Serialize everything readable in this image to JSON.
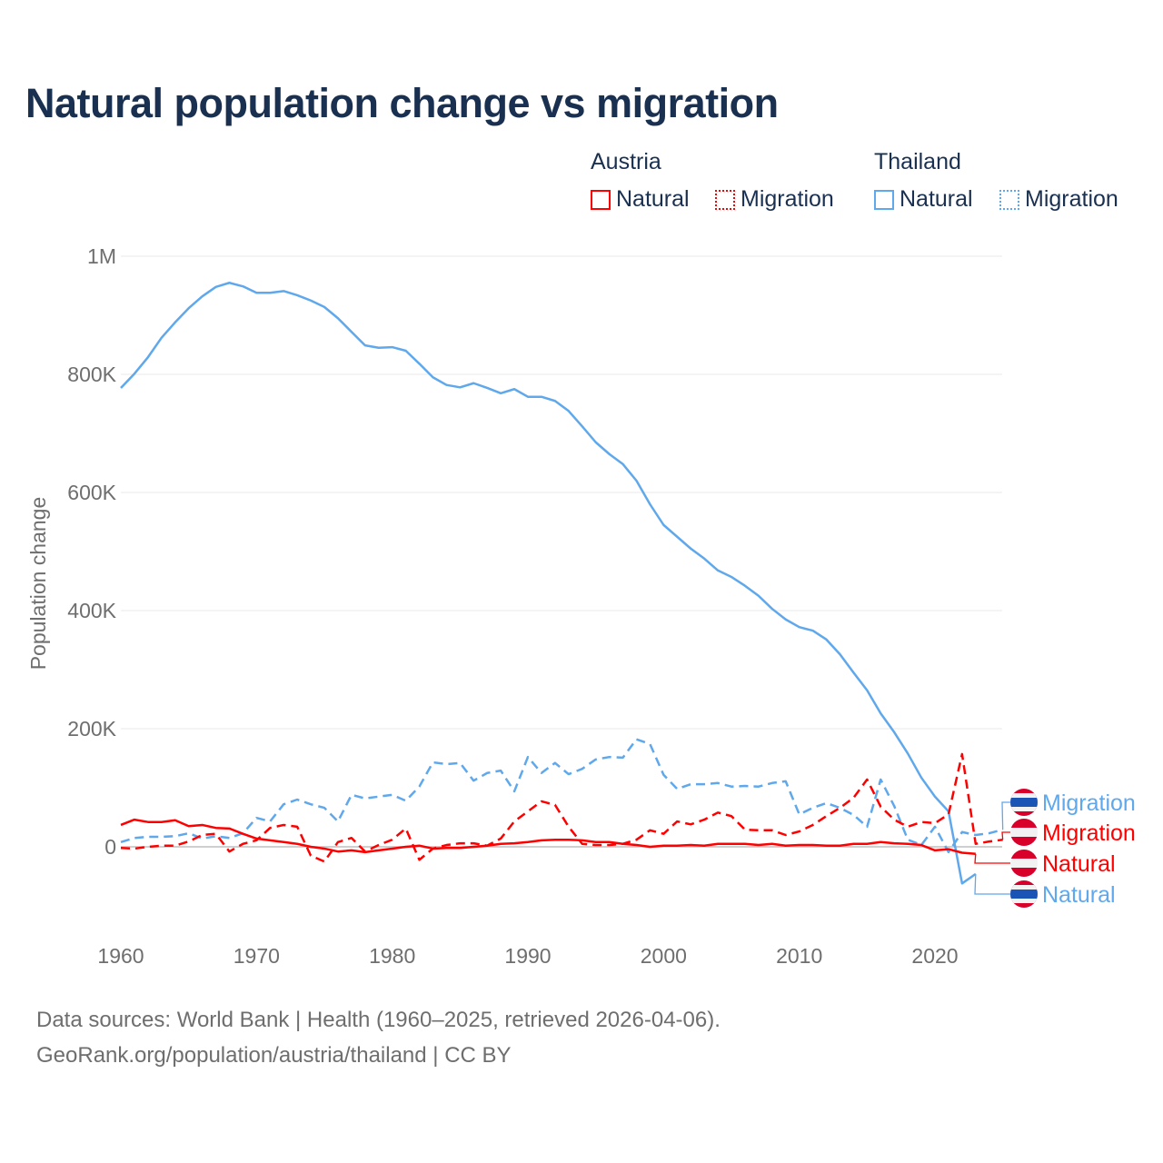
{
  "title": "Natural population change vs migration",
  "legend": {
    "groups": [
      {
        "country": "Austria",
        "items": [
          {
            "label": "Natural",
            "style": "solid",
            "color": "#ff0000"
          },
          {
            "label": "Migration",
            "style": "dotted",
            "color": "#ff0000"
          }
        ]
      },
      {
        "country": "Thailand",
        "items": [
          {
            "label": "Natural",
            "style": "solid",
            "color": "#5fa8ec"
          },
          {
            "label": "Migration",
            "style": "dotted",
            "color": "#5fa8ec"
          }
        ]
      }
    ]
  },
  "footer": {
    "line1": "Data sources: World Bank | Health (1960–2025, retrieved 2026-04-06).",
    "line2": "GeoRank.org/population/austria/thailand | CC BY"
  },
  "chart_data": {
    "type": "line",
    "title": "Natural population change vs migration",
    "xlabel": "",
    "ylabel": "Population change",
    "xlim": [
      1960,
      2025
    ],
    "ylim": [
      -150000,
      1000000
    ],
    "x_ticks": [
      1960,
      1970,
      1980,
      1990,
      2000,
      2010,
      2020
    ],
    "x_tick_labels": [
      "1960",
      "1970",
      "1980",
      "1990",
      "2000",
      "2010",
      "2020"
    ],
    "y_ticks": [
      0,
      200000,
      400000,
      600000,
      800000,
      1000000
    ],
    "y_tick_labels": [
      "0",
      "200K",
      "400K",
      "600K",
      "800K",
      "1M"
    ],
    "grid": true,
    "legend_position": "top-right",
    "series": [
      {
        "name": "Thailand Natural",
        "country": "Thailand",
        "end_label": "Natural",
        "color": "#5fa8ec",
        "dash": "solid",
        "start_year": 1960,
        "values": [
          777,
          801,
          829,
          862,
          888,
          912,
          932,
          948,
          955,
          949,
          938,
          938,
          941,
          934,
          925,
          914,
          895,
          872,
          849,
          845,
          846,
          840,
          818,
          795,
          782,
          778,
          785,
          777,
          768,
          775,
          762,
          762,
          755,
          738,
          712,
          685,
          665,
          648,
          620,
          580,
          545,
          525,
          505,
          488,
          468,
          457,
          442,
          425,
          403,
          385,
          372,
          366,
          351,
          326,
          295,
          265,
          226,
          194,
          158,
          117,
          85,
          60,
          -62,
          -46
        ],
        "unit": "thousands"
      },
      {
        "name": "Thailand Migration",
        "country": "Thailand",
        "end_label": "Migration",
        "color": "#5fa8ec",
        "dash": "dashed",
        "start_year": 1960,
        "values": [
          8,
          15,
          17,
          17,
          18,
          23,
          14,
          18,
          15,
          23,
          49,
          43,
          72,
          80,
          72,
          66,
          43,
          88,
          82,
          85,
          88,
          78,
          102,
          143,
          140,
          142,
          112,
          125,
          129,
          94,
          152,
          125,
          142,
          123,
          132,
          148,
          152,
          151,
          182,
          174,
          122,
          98,
          106,
          106,
          108,
          102,
          103,
          102,
          108,
          111,
          55,
          66,
          74,
          66,
          54,
          34,
          114,
          69,
          12,
          3,
          34,
          -9,
          25,
          20,
          23,
          29
        ],
        "unit": "thousands"
      },
      {
        "name": "Austria Natural",
        "country": "Austria",
        "end_label": "Natural",
        "color": "#ff0000",
        "dash": "solid",
        "start_year": 1960,
        "values": [
          37,
          46,
          42,
          42,
          45,
          35,
          37,
          32,
          31,
          22,
          14,
          11,
          8,
          5,
          0,
          -3,
          -8,
          -6,
          -9,
          -6,
          -3,
          0,
          2,
          -3,
          -2,
          -2,
          0,
          2,
          5,
          6,
          8,
          11,
          12,
          12,
          11,
          8,
          8,
          5,
          3,
          0,
          2,
          2,
          3,
          2,
          5,
          5,
          5,
          3,
          5,
          2,
          3,
          3,
          2,
          2,
          5,
          5,
          8,
          6,
          5,
          3,
          -6,
          -4,
          -10,
          -12
        ],
        "unit": "thousands"
      },
      {
        "name": "Austria Migration",
        "country": "Austria",
        "end_label": "Migration",
        "color": "#ff0000",
        "dash": "dashed",
        "start_year": 1960,
        "values": [
          -2,
          -3,
          0,
          2,
          2,
          9,
          20,
          22,
          -8,
          5,
          11,
          32,
          37,
          34,
          -15,
          -25,
          8,
          15,
          -8,
          3,
          12,
          31,
          -22,
          -3,
          3,
          6,
          6,
          2,
          14,
          43,
          60,
          77,
          71,
          34,
          5,
          3,
          3,
          5,
          12,
          28,
          22,
          43,
          38,
          46,
          58,
          52,
          29,
          28,
          28,
          20,
          26,
          37,
          52,
          66,
          83,
          114,
          68,
          46,
          34,
          42,
          40,
          55,
          157,
          5,
          9,
          12
        ],
        "unit": "thousands"
      }
    ]
  }
}
